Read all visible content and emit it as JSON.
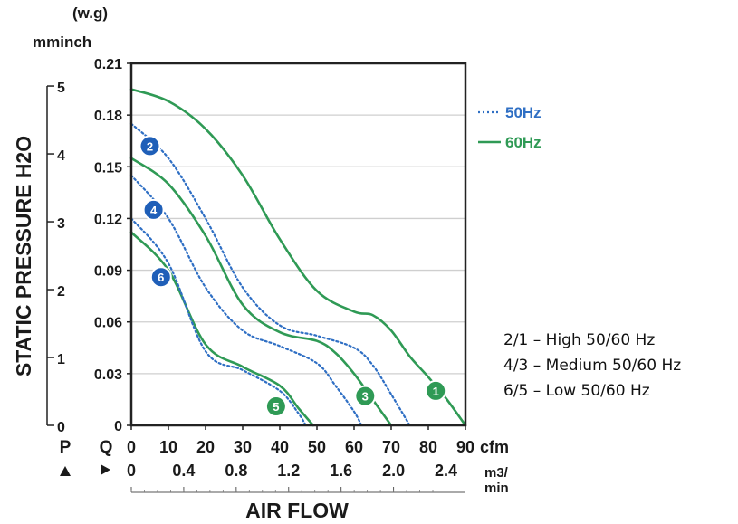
{
  "chart_data": {
    "type": "line",
    "title": "",
    "xlabel": "AIR FLOW",
    "ylabel": "STATIC PRESSURE H2O",
    "y_units": [
      "(w.g)",
      "mminch"
    ],
    "x_units_cfm": "cfm",
    "x_units_m3": [
      "m3/",
      "min"
    ],
    "x_axis_letter": "Q",
    "y_axis_letter": "P",
    "xlim_cfm": [
      0,
      90
    ],
    "ylim_inch": [
      0,
      0.21
    ],
    "x_ticks_cfm": [
      "0",
      "10",
      "20",
      "30",
      "40",
      "50",
      "60",
      "70",
      "80",
      "90"
    ],
    "x_ticks_m3": [
      "0",
      "0.4",
      "0.8",
      "1.2",
      "1.6",
      "2.0",
      "2.4"
    ],
    "x_ticks_m3_values": [
      0,
      0.4,
      0.8,
      1.2,
      1.6,
      2.0,
      2.4
    ],
    "y_ticks_inch": [
      "0",
      "0.03",
      "0.06",
      "0.09",
      "0.12",
      "0.15",
      "0.18",
      "0.21"
    ],
    "y_ticks_mm": [
      "0",
      "1",
      "2",
      "3",
      "4",
      "5"
    ],
    "grid": true,
    "legend": [
      {
        "label": "50Hz",
        "style": "dotted",
        "color": "#2f6fc4"
      },
      {
        "label": "60Hz",
        "style": "solid",
        "color": "#2f9a55"
      }
    ],
    "legend_position": "right",
    "series": [
      {
        "name": "1",
        "hz": "60Hz",
        "color": "#2f9a55",
        "style": "solid",
        "x": [
          0,
          10,
          20,
          30,
          40,
          50,
          60,
          65,
          70,
          75,
          80,
          85,
          90
        ],
        "y": [
          0.195,
          0.188,
          0.172,
          0.145,
          0.108,
          0.078,
          0.066,
          0.064,
          0.055,
          0.04,
          0.028,
          0.015,
          0
        ]
      },
      {
        "name": "2",
        "hz": "50Hz",
        "color": "#2f6fc4",
        "style": "dotted",
        "x": [
          0,
          10,
          20,
          30,
          40,
          50,
          60,
          65,
          70,
          75
        ],
        "y": [
          0.175,
          0.155,
          0.12,
          0.08,
          0.058,
          0.052,
          0.045,
          0.035,
          0.018,
          0
        ]
      },
      {
        "name": "3",
        "hz": "60Hz",
        "color": "#2f9a55",
        "style": "solid",
        "x": [
          0,
          10,
          20,
          30,
          40,
          50,
          55,
          60,
          65,
          70
        ],
        "y": [
          0.155,
          0.14,
          0.11,
          0.07,
          0.054,
          0.049,
          0.042,
          0.03,
          0.015,
          0
        ]
      },
      {
        "name": "4",
        "hz": "50Hz",
        "color": "#2f6fc4",
        "style": "dotted",
        "x": [
          0,
          10,
          20,
          30,
          40,
          50,
          55,
          60,
          62
        ],
        "y": [
          0.145,
          0.12,
          0.08,
          0.055,
          0.046,
          0.036,
          0.023,
          0.008,
          0
        ]
      },
      {
        "name": "5",
        "hz": "60Hz",
        "color": "#2f9a55",
        "style": "solid",
        "x": [
          0,
          10,
          20,
          30,
          40,
          45,
          49
        ],
        "y": [
          0.112,
          0.09,
          0.047,
          0.034,
          0.023,
          0.01,
          0
        ]
      },
      {
        "name": "6",
        "hz": "50Hz",
        "color": "#2f6fc4",
        "style": "dotted",
        "x": [
          0,
          10,
          20,
          30,
          40,
          45,
          47
        ],
        "y": [
          0.12,
          0.094,
          0.043,
          0.032,
          0.02,
          0.007,
          0
        ]
      }
    ],
    "markers": [
      {
        "label": "1",
        "color": "#2f9a55",
        "x": 82,
        "y": 0.02
      },
      {
        "label": "2",
        "color": "#1f5fb8",
        "x": 5,
        "y": 0.162
      },
      {
        "label": "3",
        "color": "#2f9a55",
        "x": 63,
        "y": 0.017
      },
      {
        "label": "4",
        "color": "#1f5fb8",
        "x": 6,
        "y": 0.125
      },
      {
        "label": "5",
        "color": "#2f9a55",
        "x": 39,
        "y": 0.011
      },
      {
        "label": "6",
        "color": "#1f5fb8",
        "x": 8,
        "y": 0.086
      }
    ]
  },
  "notes": [
    "2/1 – High 50/60 Hz",
    "4/3 – Medium 50/60 Hz",
    "6/5 – Low 50/60 Hz"
  ]
}
